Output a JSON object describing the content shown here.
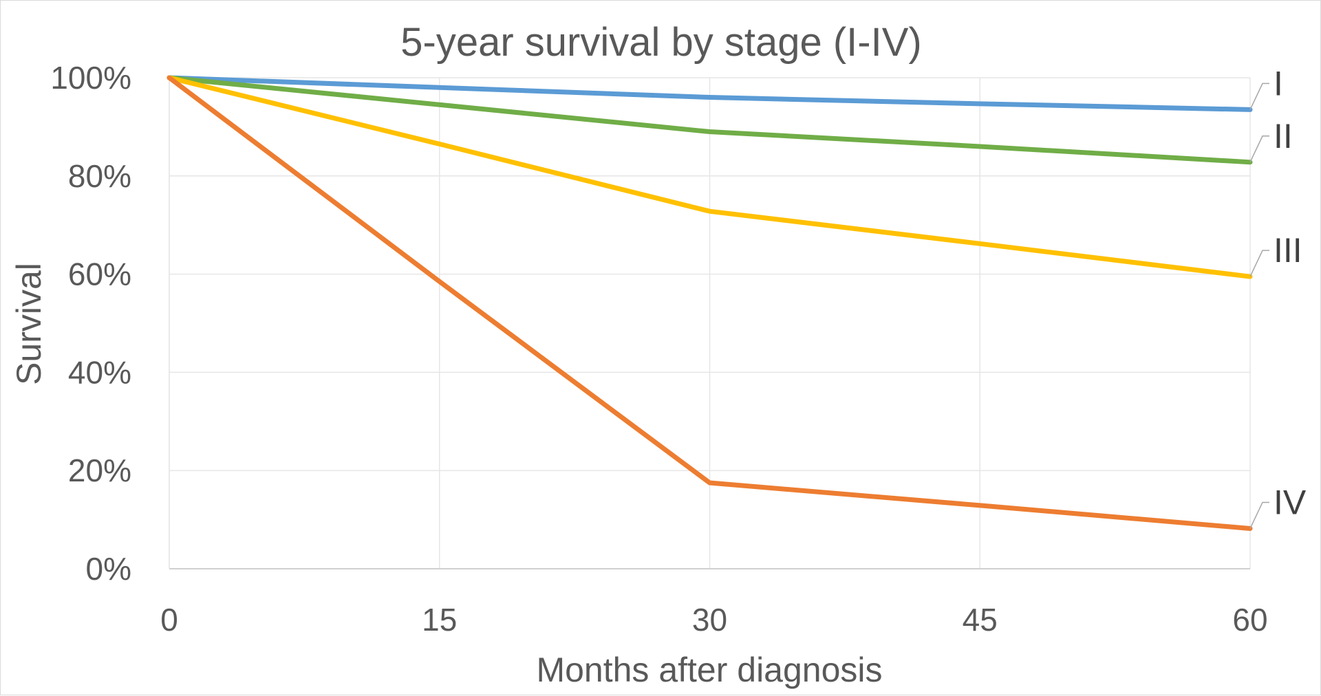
{
  "chart_data": {
    "type": "line",
    "title": "5-year survival by stage (I-IV)",
    "xlabel": "Months after diagnosis",
    "ylabel": "Survival",
    "xlim": [
      0,
      60
    ],
    "ylim": [
      0,
      100
    ],
    "x_ticks": [
      "0",
      "15",
      "30",
      "45",
      "60"
    ],
    "y_ticks": [
      "0%",
      "20%",
      "40%",
      "60%",
      "80%",
      "100%"
    ],
    "grid": true,
    "legend": "none (series labelled at line ends)",
    "series": [
      {
        "name": "I",
        "color": "#5b9bd5",
        "x": [
          0,
          15,
          30,
          45,
          60
        ],
        "values": [
          100,
          98,
          96,
          94.7,
          93.5
        ]
      },
      {
        "name": "II",
        "color": "#70ad47",
        "x": [
          0,
          15,
          30,
          45,
          60
        ],
        "values": [
          100,
          94.5,
          89,
          86,
          82.8
        ]
      },
      {
        "name": "III",
        "color": "#ffc000",
        "x": [
          0,
          15,
          30,
          45,
          60
        ],
        "values": [
          100,
          86.5,
          72.8,
          66.2,
          59.5
        ]
      },
      {
        "name": "IV",
        "color": "#ed7d31",
        "x": [
          0,
          15,
          30,
          45,
          60
        ],
        "values": [
          100,
          58.5,
          17.5,
          12.9,
          8.2
        ]
      }
    ]
  }
}
